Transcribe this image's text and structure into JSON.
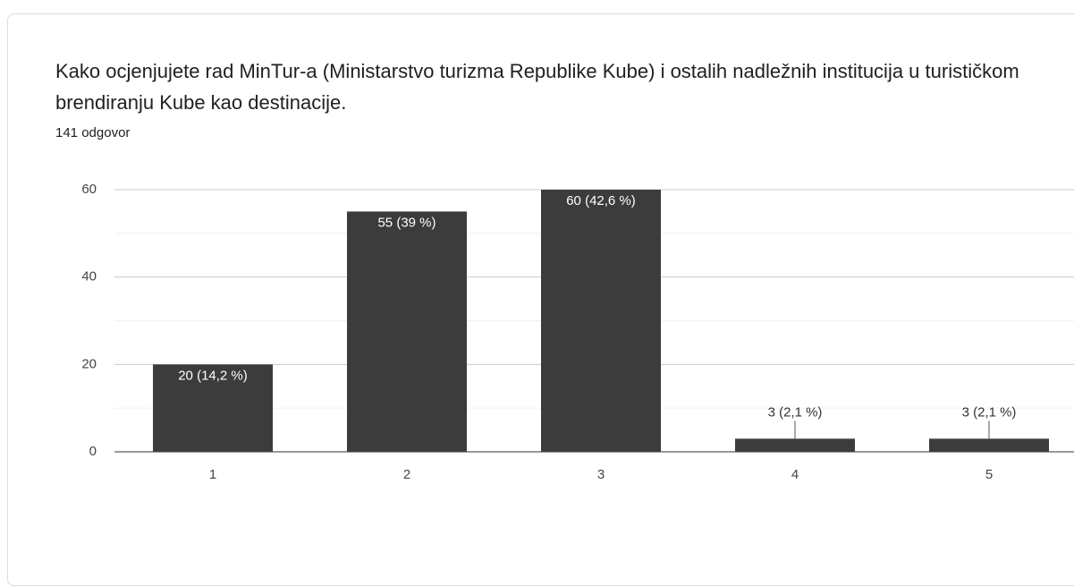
{
  "chart_data": {
    "type": "bar",
    "title": "Kako ocjenjujete rad MinTur-a (Ministarstvo turizma Republike Kube) i ostalih nadležnih institucija u turističkom brendiranju Kube kao destinacije.",
    "subtitle": "141 odgovor",
    "categories": [
      "1",
      "2",
      "3",
      "4",
      "5"
    ],
    "values": [
      20,
      55,
      60,
      3,
      3
    ],
    "value_labels": [
      "20 (14,2 %)",
      "55 (39 %)",
      "60 (42,6 %)",
      "3 (2,1 %)",
      "3 (2,1 %)"
    ],
    "color": "#3c3c3c",
    "ylim": [
      0,
      60
    ],
    "yticks": [
      0,
      20,
      40,
      60
    ],
    "grid": true,
    "minor_grid": true
  }
}
